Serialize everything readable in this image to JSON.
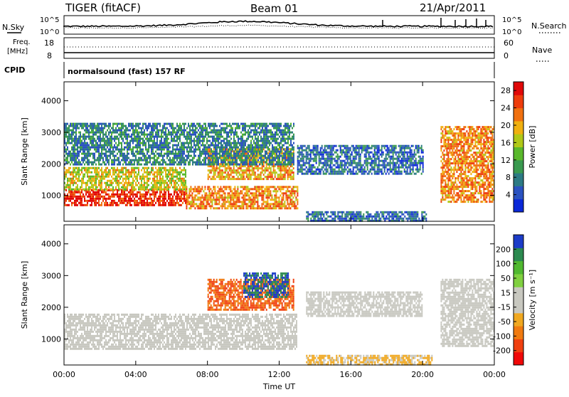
{
  "header": {
    "radar": "TIGER (fitACF)",
    "beam": "Beam 01",
    "date": "21/Apr/2011"
  },
  "top_panels": {
    "nsky_label": "N.Sky",
    "nsearch_label": "N.Search",
    "nsky_ticks": [
      "10^5",
      "10^0"
    ],
    "nsearch_ticks": [
      "10^5",
      "10^0"
    ],
    "freq_label": [
      "Freq.",
      "[MHz]"
    ],
    "freq_ticks": [
      "18",
      "8"
    ],
    "nave_label": "Nave",
    "nave_ticks": [
      "60",
      "0"
    ],
    "cpid_label": "CPID",
    "cpid_text": "normalsound (fast) 157 RF"
  },
  "chart_data": [
    {
      "type": "heatmap",
      "title": "",
      "xlabel": "Time UT",
      "ylabel": "Slant Range [km]",
      "x_ticks": [
        "00:00",
        "04:00",
        "08:00",
        "12:00",
        "16:00",
        "20:00",
        "00:00"
      ],
      "xlim_hours": [
        0,
        24
      ],
      "y_ticks": [
        1000,
        2000,
        3000,
        4000
      ],
      "ylim": [
        180,
        4600
      ],
      "colorbar": {
        "label": "Power [dB]",
        "ticks": [
          4,
          8,
          12,
          16,
          20,
          24,
          28
        ],
        "range": [
          0,
          30
        ],
        "colors": [
          "#0a28d8",
          "#2a52c0",
          "#2c7a84",
          "#3a9a50",
          "#5ab82c",
          "#b0c818",
          "#f0b010",
          "#f07010",
          "#ee3c0c",
          "#e00808"
        ]
      },
      "echo_regions": [
        {
          "t": [
            0.0,
            6.8
          ],
          "r": [
            700,
            1200
          ],
          "power": 27
        },
        {
          "t": [
            0.0,
            6.8
          ],
          "r": [
            1200,
            1900
          ],
          "power": 17
        },
        {
          "t": [
            6.8,
            13.0
          ],
          "r": [
            600,
            1300
          ],
          "power": 22
        },
        {
          "t": [
            8.0,
            12.8
          ],
          "r": [
            1500,
            2500
          ],
          "power": 20
        },
        {
          "t": [
            0.0,
            12.8
          ],
          "r": [
            2000,
            3300
          ],
          "power": 8
        },
        {
          "t": [
            13.0,
            20.0
          ],
          "r": [
            1700,
            2600
          ],
          "power": 6
        },
        {
          "t": [
            13.5,
            20.2
          ],
          "r": [
            200,
            500
          ],
          "power": 6
        },
        {
          "t": [
            21.0,
            24.0
          ],
          "r": [
            800,
            3200
          ],
          "power": 22
        }
      ]
    },
    {
      "type": "heatmap",
      "title": "",
      "xlabel": "Time UT",
      "ylabel": "Slant Range [km]",
      "x_ticks": [
        "00:00",
        "04:00",
        "08:00",
        "12:00",
        "16:00",
        "20:00",
        "00:00"
      ],
      "xlim_hours": [
        0,
        24
      ],
      "y_ticks": [
        1000,
        2000,
        3000,
        4000
      ],
      "ylim": [
        180,
        4600
      ],
      "colorbar": {
        "label": "Velocity [m s⁻¹]",
        "ticks": [
          200,
          100,
          50,
          15,
          -15,
          -50,
          -100,
          -200
        ],
        "range": [
          -250,
          250
        ],
        "colors": [
          "#f00808",
          "#f04010",
          "#f07a10",
          "#f0a820",
          "#c8c8c0",
          "#c8c8c0",
          "#80d040",
          "#50b830",
          "#2c8a50",
          "#1c3cc8"
        ]
      },
      "echo_regions": [
        {
          "t": [
            0.0,
            13.0
          ],
          "r": [
            700,
            1800
          ],
          "velocity": 0
        },
        {
          "t": [
            8.0,
            12.8
          ],
          "r": [
            1900,
            2900
          ],
          "velocity": -150
        },
        {
          "t": [
            10.0,
            12.5
          ],
          "r": [
            2300,
            3100
          ],
          "velocity": 200
        },
        {
          "t": [
            13.5,
            20.5
          ],
          "r": [
            200,
            500
          ],
          "velocity": -60
        },
        {
          "t": [
            13.5,
            20.0
          ],
          "r": [
            1700,
            2500
          ],
          "velocity": 0
        },
        {
          "t": [
            21.0,
            24.0
          ],
          "r": [
            800,
            2900
          ],
          "velocity": 20
        }
      ]
    }
  ]
}
